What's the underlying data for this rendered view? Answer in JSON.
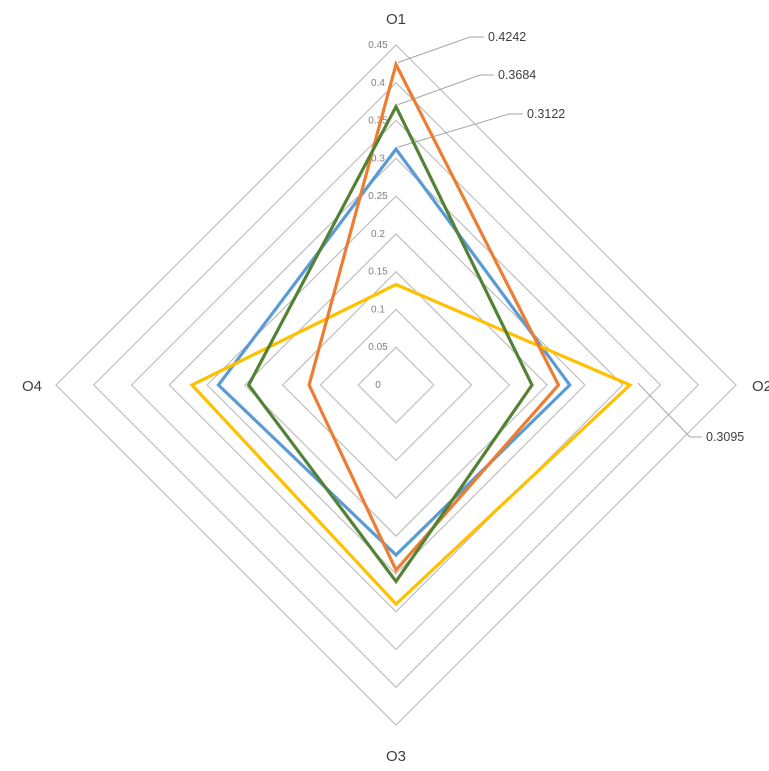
{
  "chart_data": {
    "type": "radar",
    "axes": [
      "O1",
      "O2",
      "O3",
      "O4"
    ],
    "rlim": [
      0,
      0.45
    ],
    "ticks": [
      "0",
      "0.05",
      "0.1",
      "0.15",
      "0.2",
      "0.25",
      "0.3",
      "0.35",
      "0.4",
      "0.45"
    ],
    "tick_values": [
      0,
      0.05,
      0.1,
      0.15,
      0.2,
      0.25,
      0.3,
      0.35,
      0.4,
      0.45
    ],
    "grid": true,
    "series": [
      {
        "color": "#5b9bd5",
        "values": [
          0.3122,
          0.23,
          0.225,
          0.235
        ]
      },
      {
        "color": "#ffc000",
        "values": [
          0.133,
          0.3095,
          0.29,
          0.27
        ]
      },
      {
        "color": "#ed7d31",
        "values": [
          0.4242,
          0.215,
          0.245,
          0.115
        ]
      },
      {
        "color": "#548235",
        "values": [
          0.3684,
          0.18,
          0.26,
          0.195
        ]
      }
    ],
    "data_labels": [
      {
        "text": "0.4242",
        "series": 2,
        "axis": 0
      },
      {
        "text": "0.3684",
        "series": 3,
        "axis": 0
      },
      {
        "text": "0.3122",
        "series": 0,
        "axis": 0
      },
      {
        "text": "0.3095",
        "series": 1,
        "axis": 1
      }
    ],
    "title": "",
    "legend": "none"
  }
}
